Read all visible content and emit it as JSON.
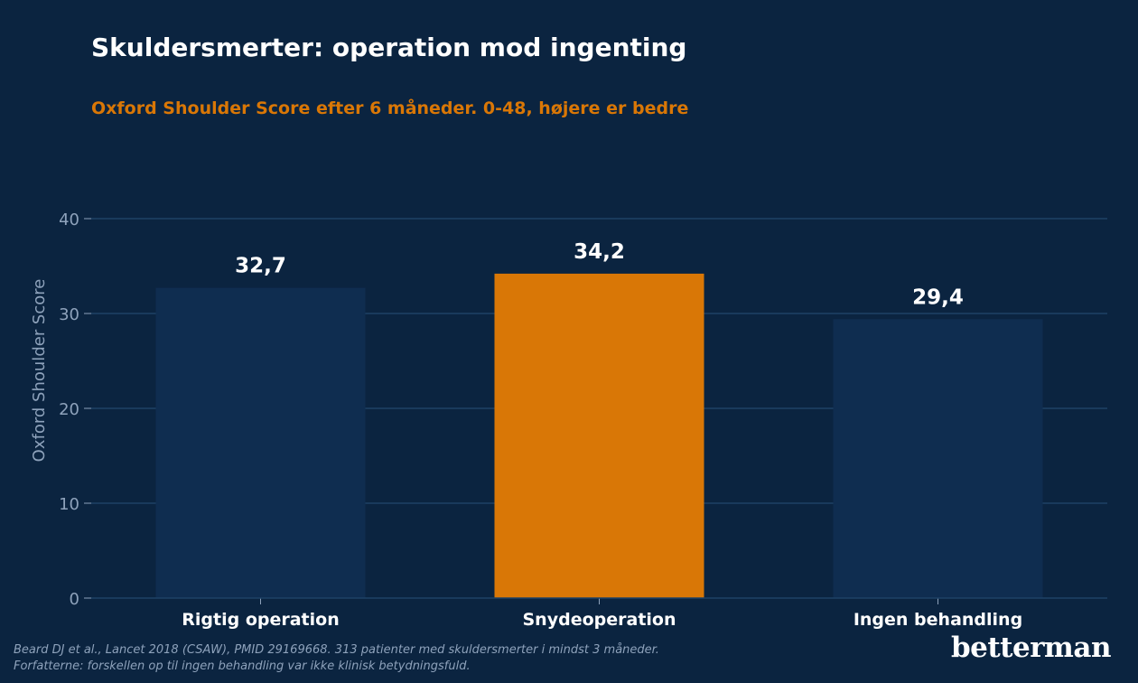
{
  "title": "Skuldersmerter: operation mod ingenting",
  "subtitle": "Oxford Shoulder Score efter 6 måneder. 0-48, højere er bedre",
  "source": {
    "line1": "Beard DJ et al., Lancet 2018 (CSAW), PMID 29169668. 313 patienter med skuldersmerter i mindst 3 måneder.",
    "line2": "Forfatterne: forskellen op til ingen behandling var ikke klinisk betydningsfuld."
  },
  "logo": "betterman",
  "colors": {
    "background": "#0b2440",
    "bar_default": "#0f2d50",
    "bar_highlight": "#d97706",
    "grid": "#1e4266",
    "axis_text": "#8ea2bb",
    "title": "#ffffff",
    "subtitle": "#d97706"
  },
  "chart_data": {
    "type": "bar",
    "categories": [
      "Rigtig operation",
      "Snydeoperation",
      "Ingen behandling"
    ],
    "values": [
      32.7,
      34.2,
      29.4
    ],
    "value_labels": [
      "32,7",
      "34,2",
      "29,4"
    ],
    "highlight_index": 1,
    "ylabel": "Oxford Shoulder Score",
    "ylim": [
      0,
      40
    ],
    "yticks": [
      0,
      10,
      20,
      30,
      40
    ],
    "grid": true
  }
}
